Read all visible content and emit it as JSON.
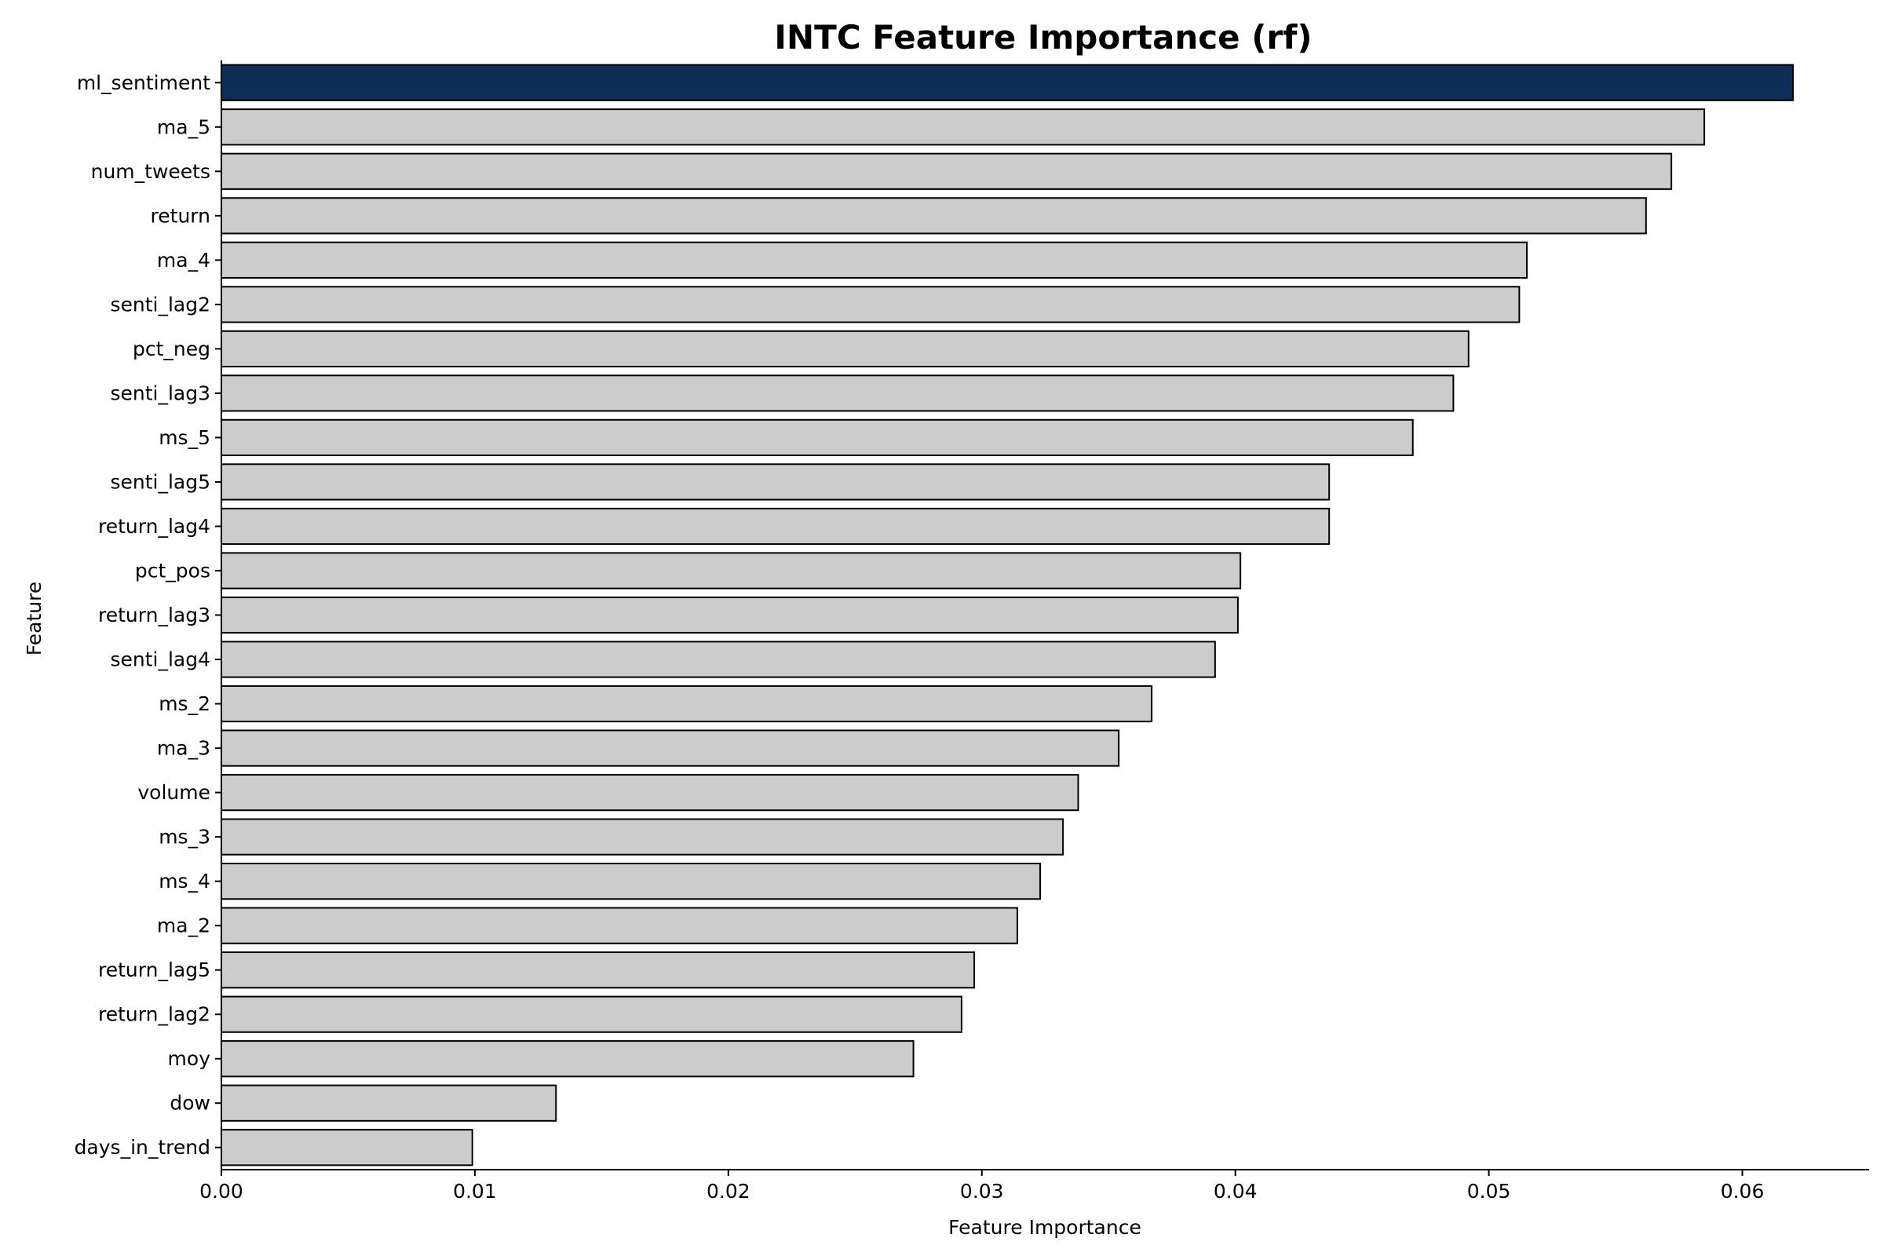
{
  "chart_data": {
    "type": "bar",
    "orientation": "horizontal",
    "title": "INTC Feature Importance (rf)",
    "xlabel": "Feature Importance",
    "ylabel": "Feature",
    "xlim": [
      0,
      0.065
    ],
    "xticks": [
      0.0,
      0.01,
      0.02,
      0.03,
      0.04,
      0.05,
      0.06
    ],
    "xtick_labels": [
      "0.00",
      "0.01",
      "0.02",
      "0.03",
      "0.04",
      "0.05",
      "0.06"
    ],
    "grid": false,
    "colors": {
      "highlight": "#0b2f55",
      "bar": "#cccccc",
      "edge": "#000000"
    },
    "highlight_index": 0,
    "categories": [
      "ml_sentiment",
      "ma_5",
      "num_tweets",
      "return",
      "ma_4",
      "senti_lag2",
      "pct_neg",
      "senti_lag3",
      "ms_5",
      "senti_lag5",
      "return_lag4",
      "pct_pos",
      "return_lag3",
      "senti_lag4",
      "ms_2",
      "ma_3",
      "volume",
      "ms_3",
      "ms_4",
      "ma_2",
      "return_lag5",
      "return_lag2",
      "moy",
      "dow",
      "days_in_trend"
    ],
    "values": [
      0.062,
      0.0585,
      0.0572,
      0.0562,
      0.0515,
      0.0512,
      0.0492,
      0.0486,
      0.047,
      0.0437,
      0.0437,
      0.0402,
      0.0401,
      0.0392,
      0.0367,
      0.0354,
      0.0338,
      0.0332,
      0.0323,
      0.0314,
      0.0297,
      0.0292,
      0.0273,
      0.0132,
      0.0099
    ]
  }
}
